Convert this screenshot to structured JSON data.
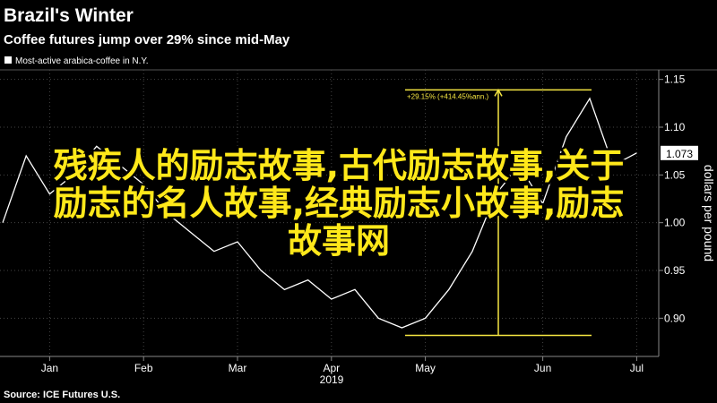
{
  "chart_data": {
    "type": "line",
    "title": "Brazil's Winter",
    "subtitle": "Coffee futures jump over 29% since mid-May",
    "y_label": "dollars per pound",
    "x_label": "2019",
    "source": "Source: ICE Futures U.S.",
    "categories": [
      null,
      null,
      "Jan",
      null,
      null,
      null,
      "Feb",
      null,
      null,
      null,
      "Mar",
      null,
      null,
      null,
      "Apr",
      null,
      null,
      null,
      "May",
      null,
      null,
      null,
      null,
      "Jun",
      null,
      null,
      null,
      "Jul"
    ],
    "series": [
      {
        "name": "Most-active arabica-coffee in N.Y.",
        "color": "#ffffff",
        "values": [
          1.0,
          1.07,
          1.03,
          1.05,
          1.08,
          1.06,
          1.04,
          1.01,
          0.99,
          0.97,
          0.98,
          0.95,
          0.93,
          0.94,
          0.92,
          0.93,
          0.9,
          0.89,
          0.9,
          0.93,
          0.97,
          1.03,
          1.06,
          1.02,
          1.09,
          1.13,
          1.06,
          1.073
        ]
      }
    ],
    "ylim": [
      0.86,
      1.16
    ],
    "yticks": [
      {
        "value": 0.9,
        "label": "0.90"
      },
      0.95,
      {
        "value": 1.0,
        "label": "1.00"
      },
      1.05,
      {
        "value": 1.1,
        "label": "1.10"
      },
      1.15
    ],
    "grid": true,
    "annotation": {
      "text": "+29.15% (+414.45%ann.)",
      "low": 0.882,
      "high": 1.139,
      "color": "#f5e642"
    },
    "overlay_text": [
      "残疾人的励志故事,古代励志故事,关于",
      "励志的名人故事,经典励志小故事,励志",
      "故事网"
    ]
  }
}
